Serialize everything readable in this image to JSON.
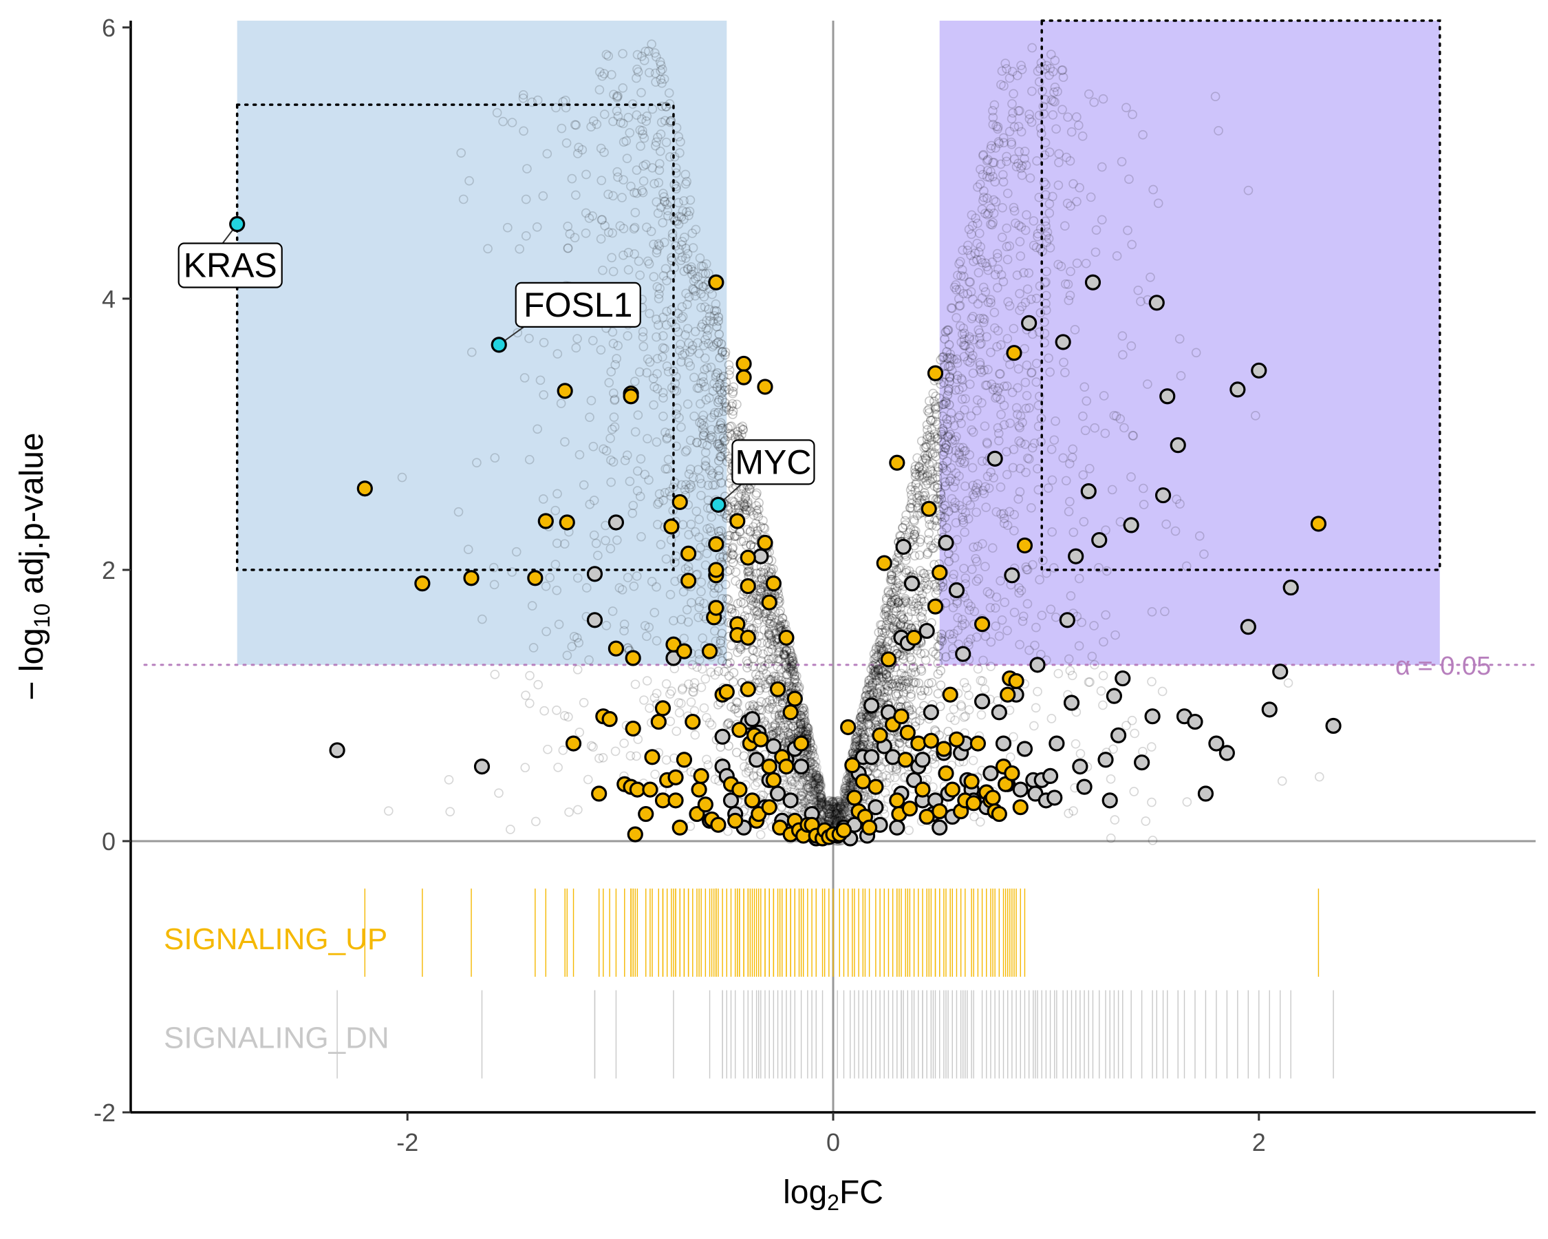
{
  "chart_data": {
    "type": "scatter",
    "title": "",
    "xlabel": "log2FC",
    "ylabel": "−log10 adj.p-value",
    "xlim": [
      -3.3,
      3.3
    ],
    "ylim": [
      -2,
      6.05
    ],
    "x_ticks": [
      -2,
      0,
      2
    ],
    "y_ticks": [
      -2,
      0,
      2,
      4,
      6
    ],
    "grid": false,
    "legend": "none",
    "colors": {
      "background_cloud": "#000000",
      "signaling_up": "#F5B800",
      "signaling_dn": "#C8C8C8",
      "highlight": "#22D3E0",
      "region_down": "#C4DAEE",
      "region_up": "#C5BAFA",
      "alpha_line": "#B77FBD",
      "zero_lines": "#999999"
    },
    "significance_line": {
      "y": 1.3,
      "label": "α = 0.05"
    },
    "shaded_regions": [
      {
        "name": "down-regulated",
        "x": [
          -2.8,
          -0.5
        ],
        "y": [
          1.3,
          6.05
        ]
      },
      {
        "name": "up-regulated",
        "x": [
          0.5,
          2.85
        ],
        "y": [
          1.3,
          6.05
        ]
      }
    ],
    "dotted_boxes": [
      {
        "x": [
          -2.8,
          -0.75
        ],
        "y": [
          2.0,
          5.43
        ]
      },
      {
        "x": [
          0.98,
          2.85
        ],
        "y": [
          2.0,
          6.05
        ]
      }
    ],
    "highlight_genes": [
      {
        "label": "KRAS",
        "x": -2.8,
        "y": 4.55
      },
      {
        "label": "FOSL1",
        "x": -1.57,
        "y": 3.66
      },
      {
        "label": "MYC",
        "x": -0.54,
        "y": 2.48
      }
    ],
    "gene_sets": [
      {
        "name": "SIGNALING_UP",
        "points": [
          [
            -2.2,
            2.6
          ],
          [
            -1.93,
            1.9
          ],
          [
            -1.7,
            1.94
          ],
          [
            -1.4,
            1.94
          ],
          [
            -1.35,
            2.36
          ],
          [
            -1.26,
            3.32
          ],
          [
            -1.25,
            2.35
          ],
          [
            -1.22,
            0.72
          ],
          [
            -1.1,
            0.35
          ],
          [
            -1.08,
            0.92
          ],
          [
            -1.05,
            0.9
          ],
          [
            -1.02,
            1.42
          ],
          [
            -0.98,
            0.42
          ],
          [
            -0.95,
            3.3
          ],
          [
            -0.95,
            3.28
          ],
          [
            -0.95,
            0.4
          ],
          [
            -0.94,
            1.35
          ],
          [
            -0.94,
            0.83
          ],
          [
            -0.93,
            0.05
          ],
          [
            -0.92,
            0.38
          ],
          [
            -0.88,
            0.2
          ],
          [
            -0.86,
            0.38
          ],
          [
            -0.85,
            0.62
          ],
          [
            -0.82,
            0.88
          ],
          [
            -0.8,
            0.98
          ],
          [
            -0.8,
            0.3
          ],
          [
            -0.78,
            0.45
          ],
          [
            -0.76,
            2.32
          ],
          [
            -0.75,
            1.45
          ],
          [
            -0.74,
            0.3
          ],
          [
            -0.74,
            0.47
          ],
          [
            -0.72,
            0.1
          ],
          [
            -0.72,
            2.5
          ],
          [
            -0.7,
            1.4
          ],
          [
            -0.7,
            0.6
          ],
          [
            -0.68,
            2.12
          ],
          [
            -0.68,
            1.92
          ],
          [
            -0.66,
            0.88
          ],
          [
            -0.64,
            0.2
          ],
          [
            -0.63,
            0.38
          ],
          [
            -0.62,
            0.48
          ],
          [
            -0.6,
            0.27
          ],
          [
            -0.58,
            1.4
          ],
          [
            -0.57,
            0.16
          ],
          [
            -0.56,
            1.65
          ],
          [
            -0.55,
            4.12
          ],
          [
            -0.55,
            2.19
          ],
          [
            -0.55,
            1.96
          ],
          [
            -0.55,
            2.0
          ],
          [
            -0.55,
            1.72
          ],
          [
            -0.54,
            0.12
          ],
          [
            -0.52,
            1.08
          ],
          [
            -0.5,
            1.1
          ],
          [
            -0.48,
            0.42
          ],
          [
            -0.46,
            0.15
          ],
          [
            -0.45,
            2.36
          ],
          [
            -0.45,
            1.6
          ],
          [
            -0.45,
            1.52
          ],
          [
            -0.44,
            0.82
          ],
          [
            -0.44,
            0.38
          ],
          [
            -0.42,
            3.52
          ],
          [
            -0.42,
            3.42
          ],
          [
            -0.4,
            2.09
          ],
          [
            -0.4,
            1.88
          ],
          [
            -0.4,
            1.5
          ],
          [
            -0.4,
            1.12
          ],
          [
            -0.39,
            0.72
          ],
          [
            -0.38,
            0.3
          ],
          [
            -0.37,
            0.78
          ],
          [
            -0.36,
            0.15
          ],
          [
            -0.35,
            0.2
          ],
          [
            -0.34,
            0.75
          ],
          [
            -0.32,
            3.35
          ],
          [
            -0.32,
            2.2
          ],
          [
            -0.3,
            1.76
          ],
          [
            -0.3,
            0.55
          ],
          [
            -0.3,
            0.25
          ],
          [
            -0.28,
            1.9
          ],
          [
            -0.28,
            0.45
          ],
          [
            -0.26,
            1.12
          ],
          [
            -0.25,
            0.1
          ],
          [
            -0.24,
            0.62
          ],
          [
            -0.22,
            0.55
          ],
          [
            -0.22,
            1.5
          ],
          [
            -0.2,
            0.95
          ],
          [
            -0.2,
            0.05
          ],
          [
            -0.18,
            1.05
          ],
          [
            -0.18,
            0.15
          ],
          [
            -0.16,
            0.08
          ],
          [
            -0.15,
            0.72
          ],
          [
            -0.14,
            0.04
          ],
          [
            -0.12,
            0.12
          ],
          [
            -0.1,
            0.12
          ],
          [
            -0.08,
            0.04
          ],
          [
            -0.05,
            0.02
          ],
          [
            -0.04,
            0.08
          ],
          [
            -0.02,
            0.03
          ],
          [
            0.0,
            0.05
          ],
          [
            0.03,
            0.05
          ],
          [
            0.05,
            0.08
          ],
          [
            0.07,
            0.84
          ],
          [
            0.09,
            0.56
          ],
          [
            0.1,
            0.32
          ],
          [
            0.12,
            0.22
          ],
          [
            0.14,
            0.44
          ],
          [
            0.15,
            0.18
          ],
          [
            0.17,
            0.1
          ],
          [
            0.2,
            0.4
          ],
          [
            0.22,
            0.78
          ],
          [
            0.24,
            2.05
          ],
          [
            0.26,
            1.34
          ],
          [
            0.28,
            0.86
          ],
          [
            0.3,
            2.79
          ],
          [
            0.3,
            0.3
          ],
          [
            0.31,
            0.2
          ],
          [
            0.32,
            0.92
          ],
          [
            0.34,
            0.6
          ],
          [
            0.35,
            0.8
          ],
          [
            0.36,
            0.24
          ],
          [
            0.38,
            1.5
          ],
          [
            0.4,
            0.72
          ],
          [
            0.42,
            0.38
          ],
          [
            0.44,
            0.18
          ],
          [
            0.45,
            2.45
          ],
          [
            0.46,
            0.74
          ],
          [
            0.48,
            1.73
          ],
          [
            0.48,
            3.45
          ],
          [
            0.5,
            0.22
          ],
          [
            0.52,
            0.68
          ],
          [
            0.53,
            0.5
          ],
          [
            0.55,
            1.08
          ],
          [
            0.56,
            0.38
          ],
          [
            0.58,
            0.75
          ],
          [
            0.6,
            0.22
          ],
          [
            0.62,
            0.3
          ],
          [
            0.65,
            0.44
          ],
          [
            0.66,
            0.28
          ],
          [
            0.68,
            0.72
          ],
          [
            0.7,
            1.6
          ],
          [
            0.72,
            0.36
          ],
          [
            0.74,
            0.3
          ],
          [
            0.75,
            0.32
          ],
          [
            0.76,
            0.22
          ],
          [
            0.78,
            0.2
          ],
          [
            0.8,
            0.55
          ],
          [
            0.81,
            0.42
          ],
          [
            0.82,
            1.08
          ],
          [
            0.83,
            1.2
          ],
          [
            0.84,
            0.5
          ],
          [
            0.85,
            3.6
          ],
          [
            0.86,
            1.18
          ],
          [
            0.88,
            0.25
          ],
          [
            0.9,
            2.18
          ],
          [
            0.5,
            1.98
          ],
          [
            2.28,
            2.34
          ]
        ]
      },
      {
        "name": "SIGNALING_DN",
        "points": [
          [
            -2.33,
            0.67
          ],
          [
            -1.65,
            0.55
          ],
          [
            -1.12,
            1.97
          ],
          [
            -1.12,
            1.63
          ],
          [
            -1.02,
            2.35
          ],
          [
            -0.75,
            1.35
          ],
          [
            -0.58,
            0.15
          ],
          [
            -0.52,
            0.77
          ],
          [
            -0.52,
            0.55
          ],
          [
            -0.5,
            0.48
          ],
          [
            -0.48,
            0.3
          ],
          [
            -0.46,
            0.2
          ],
          [
            -0.42,
            0.1
          ],
          [
            -0.4,
            0.88
          ],
          [
            -0.38,
            0.9
          ],
          [
            -0.36,
            0.6
          ],
          [
            -0.35,
            0.8
          ],
          [
            -0.34,
            2.1
          ],
          [
            -0.32,
            0.25
          ],
          [
            -0.3,
            0.45
          ],
          [
            -0.28,
            0.7
          ],
          [
            -0.26,
            0.35
          ],
          [
            -0.24,
            0.15
          ],
          [
            -0.22,
            0.6
          ],
          [
            -0.2,
            0.3
          ],
          [
            -0.18,
            0.68
          ],
          [
            -0.15,
            0.55
          ],
          [
            -0.12,
            0.1
          ],
          [
            -0.1,
            0.2
          ],
          [
            -0.08,
            0.02
          ],
          [
            -0.05,
            0.03
          ],
          [
            0.02,
            0.04
          ],
          [
            0.05,
            0.1
          ],
          [
            0.08,
            0.02
          ],
          [
            0.1,
            0.12
          ],
          [
            0.12,
            0.5
          ],
          [
            0.14,
            0.62
          ],
          [
            0.16,
            0.04
          ],
          [
            0.18,
            1.0
          ],
          [
            0.18,
            0.62
          ],
          [
            0.2,
            0.25
          ],
          [
            0.22,
            0.12
          ],
          [
            0.24,
            0.7
          ],
          [
            0.26,
            0.95
          ],
          [
            0.28,
            0.62
          ],
          [
            0.3,
            0.1
          ],
          [
            0.32,
            1.5
          ],
          [
            0.32,
            0.35
          ],
          [
            0.33,
            2.17
          ],
          [
            0.35,
            1.46
          ],
          [
            0.37,
            1.9
          ],
          [
            0.38,
            0.45
          ],
          [
            0.4,
            0.55
          ],
          [
            0.42,
            0.3
          ],
          [
            0.42,
            0.6
          ],
          [
            0.44,
            1.55
          ],
          [
            0.46,
            0.95
          ],
          [
            0.47,
            0.2
          ],
          [
            0.48,
            0.3
          ],
          [
            0.5,
            0.1
          ],
          [
            0.52,
            0.65
          ],
          [
            0.53,
            2.2
          ],
          [
            0.54,
            0.35
          ],
          [
            0.56,
            0.18
          ],
          [
            0.58,
            1.85
          ],
          [
            0.6,
            0.65
          ],
          [
            0.61,
            1.38
          ],
          [
            0.62,
            0.72
          ],
          [
            0.63,
            0.45
          ],
          [
            0.65,
            0.38
          ],
          [
            0.66,
            0.3
          ],
          [
            0.7,
            1.03
          ],
          [
            0.72,
            0.25
          ],
          [
            0.74,
            0.5
          ],
          [
            0.76,
            2.82
          ],
          [
            0.78,
            0.95
          ],
          [
            0.8,
            0.72
          ],
          [
            0.82,
            0.42
          ],
          [
            0.84,
            1.96
          ],
          [
            0.86,
            1.08
          ],
          [
            0.88,
            0.38
          ],
          [
            0.9,
            0.68
          ],
          [
            0.92,
            3.82
          ],
          [
            0.94,
            0.45
          ],
          [
            0.95,
            0.35
          ],
          [
            0.96,
            1.3
          ],
          [
            0.98,
            0.45
          ],
          [
            1.0,
            0.3
          ],
          [
            1.02,
            0.48
          ],
          [
            1.04,
            0.32
          ],
          [
            1.05,
            0.72
          ],
          [
            1.08,
            3.68
          ],
          [
            1.1,
            1.63
          ],
          [
            1.12,
            1.02
          ],
          [
            1.14,
            2.1
          ],
          [
            1.16,
            0.55
          ],
          [
            1.18,
            0.4
          ],
          [
            1.2,
            2.58
          ],
          [
            1.22,
            4.12
          ],
          [
            1.25,
            2.22
          ],
          [
            1.28,
            0.6
          ],
          [
            1.3,
            0.3
          ],
          [
            1.32,
            1.07
          ],
          [
            1.34,
            0.78
          ],
          [
            1.36,
            1.2
          ],
          [
            1.4,
            2.33
          ],
          [
            1.45,
            0.58
          ],
          [
            1.5,
            0.92
          ],
          [
            1.52,
            3.97
          ],
          [
            1.55,
            2.55
          ],
          [
            1.57,
            3.28
          ],
          [
            1.62,
            2.92
          ],
          [
            1.65,
            0.92
          ],
          [
            1.7,
            0.88
          ],
          [
            1.75,
            0.35
          ],
          [
            1.8,
            0.72
          ],
          [
            1.85,
            0.65
          ],
          [
            1.9,
            3.33
          ],
          [
            1.95,
            1.58
          ],
          [
            2.0,
            3.47
          ],
          [
            2.05,
            0.97
          ],
          [
            2.1,
            1.25
          ],
          [
            2.15,
            1.87
          ],
          [
            2.35,
            0.85
          ]
        ]
      }
    ],
    "rug_label_positions": "left, below zero line"
  }
}
